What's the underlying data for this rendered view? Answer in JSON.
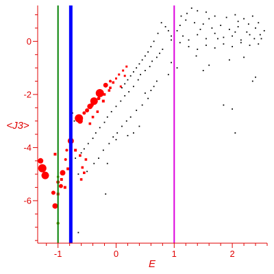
{
  "chart_data": {
    "type": "scatter",
    "title": "",
    "xlabel": "E",
    "ylabel": "<J3>",
    "xlim": [
      -1.35,
      2.6
    ],
    "ylim": [
      -7.6,
      1.35
    ],
    "grid": false,
    "x_ticks": [
      -1,
      0,
      1,
      2
    ],
    "y_ticks": [
      0,
      -2,
      -4,
      -6
    ],
    "colors": {
      "axis": "#e00000",
      "red_markers": "#ff0000",
      "black_markers": "#000000",
      "line_green": "#008000",
      "line_blue": "#0000ff",
      "line_magenta": "#dd00dd"
    },
    "vertical_lines": [
      {
        "x": -1.0,
        "color": "#008000",
        "style": "thin"
      },
      {
        "x": -0.78,
        "color": "#0000ff",
        "style": "thick"
      },
      {
        "x": 1.0,
        "color": "#dd00dd",
        "style": "medium"
      }
    ],
    "series": [
      {
        "marker": "circle",
        "color": "#ff0000",
        "points": [
          [
            -1.27,
            -4.78,
            6
          ],
          [
            -1.22,
            -5.05,
            5.5
          ],
          [
            -1.3,
            -4.5,
            4
          ],
          [
            -1.08,
            -5.7,
            3
          ],
          [
            -1.05,
            -6.2,
            4
          ],
          [
            -1.0,
            -5.3,
            2.5
          ],
          [
            -0.92,
            -4.95,
            4
          ],
          [
            -0.95,
            -5.45,
            3
          ],
          [
            -0.87,
            -4.45,
            2
          ],
          [
            -0.85,
            -4.1,
            2
          ],
          [
            -0.78,
            -3.75,
            4.5
          ],
          [
            -0.62,
            -3.0,
            4
          ],
          [
            -0.64,
            -2.9,
            6
          ],
          [
            -0.45,
            -2.45,
            4
          ],
          [
            -0.38,
            -2.25,
            5.5
          ],
          [
            -0.28,
            -1.95,
            6
          ],
          [
            -0.18,
            -1.65,
            3.5
          ],
          [
            -0.5,
            -2.6,
            3
          ],
          [
            -0.55,
            -2.7,
            2.5
          ],
          [
            -0.1,
            -1.5,
            2
          ],
          [
            -0.42,
            -2.4,
            3
          ],
          [
            -0.3,
            -2.15,
            2.5
          ]
        ]
      },
      {
        "marker": "square",
        "color": "#ff0000",
        "points": [
          [
            -1.05,
            -4.25,
            2
          ],
          [
            -1.0,
            -5.75,
            2
          ],
          [
            -0.94,
            -5.2,
            2
          ],
          [
            -0.88,
            -5.5,
            2
          ],
          [
            -0.83,
            -4.8,
            2
          ],
          [
            -0.7,
            -4.1,
            2
          ],
          [
            -0.62,
            -4.3,
            1.8
          ],
          [
            -0.58,
            -4.75,
            1.8
          ],
          [
            -0.55,
            -4.95,
            1.8
          ],
          [
            -0.52,
            -4.45,
            1.8
          ],
          [
            -0.6,
            -5.2,
            1.8
          ],
          [
            -0.45,
            -3.1,
            1.8
          ],
          [
            -0.4,
            -2.85,
            1.8
          ],
          [
            -0.32,
            -2.65,
            1.8
          ],
          [
            -0.22,
            -2.25,
            2
          ],
          [
            -0.12,
            -1.85,
            1.8
          ],
          [
            -0.05,
            -1.55,
            1.8
          ],
          [
            0.05,
            -1.25,
            1.5
          ],
          [
            0.12,
            -1.1,
            1.5
          ],
          [
            0.18,
            -0.95,
            1.5
          ],
          [
            0.0,
            -1.4,
            1.5
          ],
          [
            0.08,
            -1.7,
            1.5
          ],
          [
            0.15,
            -1.3,
            1.5
          ],
          [
            -0.2,
            -2.0,
            1.8
          ],
          [
            -0.1,
            -1.75,
            1.8
          ]
        ]
      },
      {
        "marker": "circle",
        "color": "#808000",
        "points": [
          [
            -1.0,
            -6.85,
            2.2
          ],
          [
            -1.0,
            -5.1,
            1.8
          ]
        ]
      },
      {
        "marker": "dot",
        "color": "#000000",
        "points": [
          [
            1.3,
            1.25
          ],
          [
            1.4,
            1.15
          ],
          [
            1.22,
            1.05
          ],
          [
            1.55,
            1.1
          ],
          [
            1.7,
            0.95
          ],
          [
            1.9,
            0.9
          ],
          [
            2.05,
            1.0
          ],
          [
            2.2,
            0.85
          ],
          [
            2.35,
            0.95
          ],
          [
            2.45,
            0.7
          ],
          [
            2.55,
            0.4
          ],
          [
            2.4,
            0.5
          ],
          [
            2.25,
            0.35
          ],
          [
            2.1,
            0.55
          ],
          [
            1.95,
            0.45
          ],
          [
            1.8,
            0.6
          ],
          [
            1.65,
            0.5
          ],
          [
            1.5,
            0.65
          ],
          [
            1.35,
            0.7
          ],
          [
            1.2,
            0.8
          ],
          [
            1.1,
            0.6
          ],
          [
            1.05,
            0.4
          ],
          [
            1.15,
            0.2
          ],
          [
            1.25,
            0.05
          ],
          [
            1.4,
            0.25
          ],
          [
            1.55,
            0.1
          ],
          [
            1.7,
            0.3
          ],
          [
            1.85,
            0.15
          ],
          [
            2.0,
            0.2
          ],
          [
            2.15,
            0.05
          ],
          [
            2.3,
            0.25
          ],
          [
            2.5,
            0.1
          ],
          [
            2.45,
            -0.1
          ],
          [
            2.3,
            -0.15
          ],
          [
            2.15,
            -0.05
          ],
          [
            2.0,
            -0.2
          ],
          [
            1.85,
            -0.1
          ],
          [
            1.7,
            -0.25
          ],
          [
            1.55,
            -0.15
          ],
          [
            1.4,
            -0.3
          ],
          [
            1.25,
            -0.2
          ],
          [
            1.1,
            -0.05
          ],
          [
            0.95,
            0.05
          ],
          [
            0.9,
            0.4
          ],
          [
            0.85,
            0.55
          ],
          [
            0.78,
            0.7
          ],
          [
            0.72,
            0.3
          ],
          [
            0.65,
            0.0
          ],
          [
            0.6,
            -0.2
          ],
          [
            0.55,
            -0.4
          ],
          [
            0.5,
            -0.55
          ],
          [
            0.45,
            -0.7
          ],
          [
            0.4,
            -0.85
          ],
          [
            0.35,
            -1.0
          ],
          [
            0.3,
            -1.15
          ],
          [
            0.25,
            -1.3
          ],
          [
            0.2,
            -1.45
          ],
          [
            0.15,
            -1.6
          ],
          [
            0.1,
            -1.75
          ],
          [
            0.8,
            -0.3
          ],
          [
            0.75,
            -0.45
          ],
          [
            0.7,
            -0.6
          ],
          [
            0.62,
            -0.75
          ],
          [
            0.58,
            -0.95
          ],
          [
            0.5,
            -1.1
          ],
          [
            0.42,
            -1.25
          ],
          [
            0.38,
            -1.45
          ],
          [
            0.3,
            -1.7
          ],
          [
            0.22,
            -1.9
          ],
          [
            0.15,
            -2.05
          ],
          [
            0.08,
            -2.25
          ],
          [
            0.0,
            -2.45
          ],
          [
            -0.08,
            -2.65
          ],
          [
            -0.15,
            -2.85
          ],
          [
            -0.2,
            -3.05
          ],
          [
            -0.28,
            -3.25
          ],
          [
            -0.35,
            -3.45
          ],
          [
            -0.4,
            -3.65
          ],
          [
            -0.48,
            -3.85
          ],
          [
            -0.55,
            -4.05
          ],
          [
            -0.6,
            -4.2
          ],
          [
            0.55,
            -2.15
          ],
          [
            0.45,
            -2.4
          ],
          [
            0.35,
            -2.6
          ],
          [
            0.25,
            -2.85
          ],
          [
            0.18,
            -3.0
          ],
          [
            0.1,
            -3.2
          ],
          [
            0.02,
            -3.45
          ],
          [
            -0.05,
            -3.6
          ],
          [
            -0.12,
            -3.85
          ],
          [
            -0.22,
            -4.1
          ],
          [
            -0.3,
            -4.4
          ],
          [
            -0.38,
            -4.6
          ],
          [
            0.7,
            -1.5
          ],
          [
            0.65,
            -1.7
          ],
          [
            0.4,
            -3.2
          ],
          [
            0.3,
            -3.45
          ],
          [
            0.2,
            -3.55
          ],
          [
            0.0,
            -3.7
          ],
          [
            -0.15,
            -4.6
          ],
          [
            -0.5,
            -4.9
          ],
          [
            -0.65,
            -5.0
          ],
          [
            -0.7,
            -4.4
          ],
          [
            -0.72,
            -3.0
          ],
          [
            -0.75,
            -2.7
          ],
          [
            -0.65,
            -7.2
          ],
          [
            -0.18,
            -5.75
          ],
          [
            1.85,
            -2.4
          ],
          [
            2.0,
            -2.55
          ],
          [
            2.05,
            -3.45
          ],
          [
            2.35,
            -1.5
          ],
          [
            2.4,
            -1.35
          ],
          [
            1.6,
            -0.9
          ],
          [
            1.5,
            -1.1
          ],
          [
            1.38,
            -0.55
          ],
          [
            1.95,
            -0.7
          ],
          [
            2.2,
            -0.6
          ],
          [
            0.95,
            -0.8
          ],
          [
            1.05,
            -1.0
          ],
          [
            0.9,
            -1.25
          ],
          [
            0.6,
            -1.85
          ],
          [
            0.5,
            -1.95
          ],
          [
            0.95,
            0.2
          ],
          [
            1.12,
            0.95
          ],
          [
            1.6,
            0.85
          ],
          [
            2.1,
            0.75
          ],
          [
            2.28,
            0.65
          ],
          [
            2.48,
            0.25
          ],
          [
            1.45,
            0.45
          ],
          [
            1.75,
            0.1
          ],
          [
            2.05,
            0.35
          ],
          [
            2.38,
            0.1
          ]
        ]
      }
    ]
  }
}
